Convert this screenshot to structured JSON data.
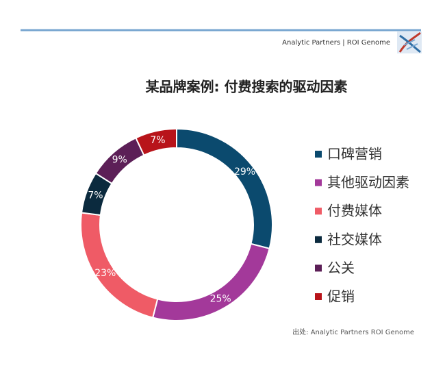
{
  "header": {
    "text": "Analytic Partners | ROI Genome"
  },
  "chart_data": {
    "type": "donut",
    "title": "某品牌案例: 付费搜索的驱动因素",
    "categories": [
      "口碑营销",
      "其他驱动因素",
      "付费媒体",
      "社交媒体",
      "公关",
      "促销"
    ],
    "values": [
      29,
      25,
      23,
      7,
      9,
      7
    ],
    "value_labels": [
      "29%",
      "25%",
      "23%",
      "7%",
      "9%",
      "7%"
    ],
    "colors": [
      "#0b4a6e",
      "#a3399a",
      "#ef5b66",
      "#0b2a3e",
      "#5c1f57",
      "#b8141a"
    ],
    "source": "出处: Analytic Partners ROI Genome"
  }
}
